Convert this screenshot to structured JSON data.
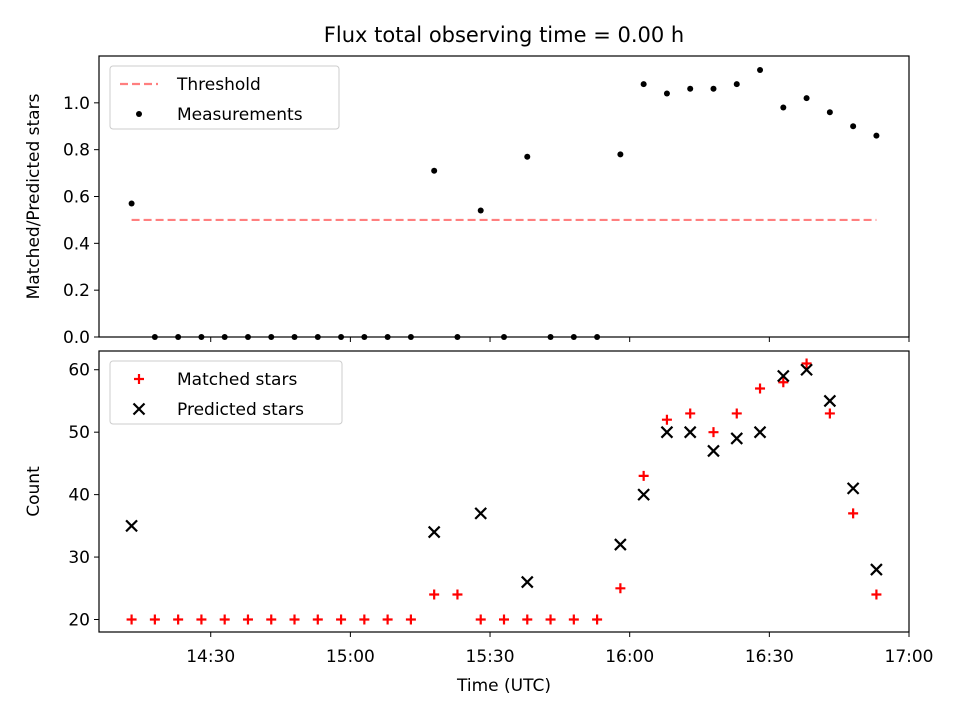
{
  "figure": {
    "title": "Flux total observing time = 0.00 h",
    "xlabel": "Time (UTC)",
    "xticklabels": [
      "14:30",
      "15:00",
      "15:30",
      "16:00",
      "16:30",
      "17:00"
    ]
  },
  "chart_data": [
    {
      "type": "scatter",
      "ylabel": "Matched/Predicted stars",
      "xlim": [
        "14:06",
        "17:00"
      ],
      "ylim": [
        0,
        1.2
      ],
      "yticks": [
        "0.0",
        "0.2",
        "0.4",
        "0.6",
        "0.8",
        "1.0"
      ],
      "legend_location": "top-left",
      "series": [
        {
          "name": "Threshold",
          "style": "dashed-line",
          "color": "#ff7f7f",
          "x": [
            "14:13",
            "16:53"
          ],
          "y": [
            0.5,
            0.5
          ]
        },
        {
          "name": "Measurements",
          "style": "dot",
          "color": "#000000",
          "x": [
            "14:13",
            "14:18",
            "14:23",
            "14:28",
            "14:33",
            "14:38",
            "14:43",
            "14:48",
            "14:53",
            "14:58",
            "15:03",
            "15:08",
            "15:13",
            "15:18",
            "15:23",
            "15:28",
            "15:33",
            "15:38",
            "15:43",
            "15:48",
            "15:53",
            "15:58",
            "16:03",
            "16:08",
            "16:13",
            "16:18",
            "16:23",
            "16:28",
            "16:33",
            "16:38",
            "16:43",
            "16:48",
            "16:53"
          ],
          "y": [
            0.57,
            0,
            0,
            0,
            0,
            0,
            0,
            0,
            0,
            0,
            0,
            0,
            0,
            0.71,
            0,
            0.54,
            0,
            0.77,
            0,
            0,
            0,
            0.78,
            1.08,
            1.04,
            1.06,
            1.06,
            1.08,
            1.14,
            0.98,
            1.02,
            0.96,
            0.9,
            0.86
          ]
        }
      ]
    },
    {
      "type": "scatter",
      "ylabel": "Count",
      "xlim": [
        "14:06",
        "17:00"
      ],
      "ylim": [
        18,
        63
      ],
      "yticks": [
        "20",
        "30",
        "40",
        "50",
        "60"
      ],
      "legend_location": "top-left",
      "series": [
        {
          "name": "Matched stars",
          "marker": "plus",
          "color": "#ff0000",
          "x": [
            "14:13",
            "14:18",
            "14:23",
            "14:28",
            "14:33",
            "14:38",
            "14:43",
            "14:48",
            "14:53",
            "14:58",
            "15:03",
            "15:08",
            "15:13",
            "15:18",
            "15:23",
            "15:28",
            "15:33",
            "15:38",
            "15:43",
            "15:48",
            "15:53",
            "15:58",
            "16:03",
            "16:08",
            "16:13",
            "16:18",
            "16:23",
            "16:28",
            "16:33",
            "16:38",
            "16:43",
            "16:48",
            "16:53"
          ],
          "y": [
            20,
            20,
            20,
            20,
            20,
            20,
            20,
            20,
            20,
            20,
            20,
            20,
            20,
            24,
            24,
            20,
            20,
            20,
            20,
            20,
            20,
            25,
            43,
            52,
            53,
            50,
            53,
            57,
            58,
            61,
            53,
            37,
            24
          ]
        },
        {
          "name": "Predicted stars",
          "marker": "x",
          "color": "#000000",
          "x": [
            "14:13",
            "15:18",
            "15:28",
            "15:38",
            "15:58",
            "16:03",
            "16:08",
            "16:13",
            "16:18",
            "16:23",
            "16:28",
            "16:33",
            "16:38",
            "16:43",
            "16:48",
            "16:53"
          ],
          "y": [
            35,
            34,
            37,
            26,
            32,
            40,
            50,
            50,
            47,
            49,
            50,
            59,
            60,
            55,
            41,
            28
          ]
        }
      ]
    }
  ]
}
